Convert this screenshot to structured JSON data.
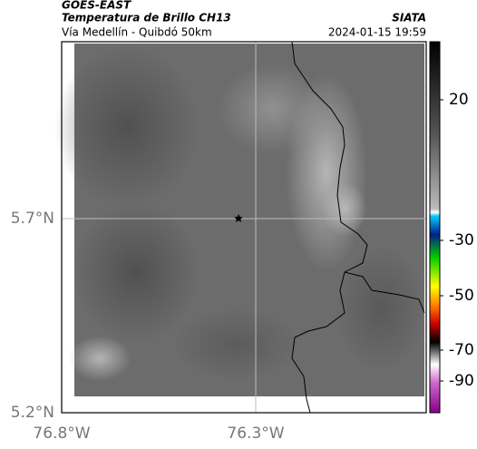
{
  "header": {
    "agency": "GOES-EAST",
    "product": "Temperatura de Brillo CH13",
    "route": "Vía Medellín - Quibdó 50km",
    "source": "SIATA",
    "timestamp": "2024-01-15 19:59"
  },
  "map": {
    "lat_labels": [
      "5.7°N",
      "5.2°N"
    ],
    "lon_labels": [
      "76.8°W",
      "76.3°W"
    ]
  },
  "colorbar": {
    "ticks": [
      20,
      -30,
      -50,
      -70,
      -90
    ]
  }
}
